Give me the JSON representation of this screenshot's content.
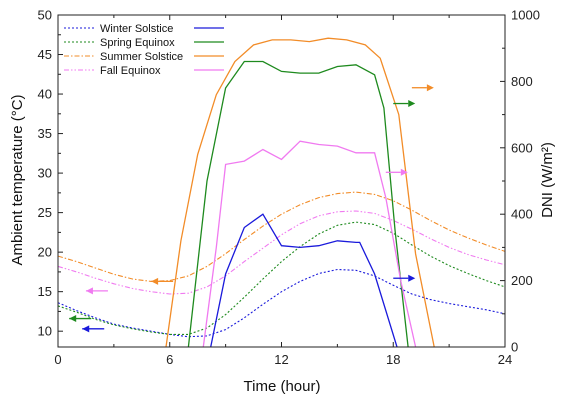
{
  "chart_data": {
    "type": "line",
    "xlabel": "Time (hour)",
    "ylabel_left": "Ambient temperature (°C)",
    "ylabel_right": "DNI (W/m²)",
    "xlim": [
      0,
      24
    ],
    "ylim_left": [
      8,
      50
    ],
    "ylim_right": [
      0,
      1000
    ],
    "x_ticks": [
      0,
      6,
      12,
      18,
      24
    ],
    "y_ticks_left": [
      10,
      15,
      20,
      25,
      30,
      35,
      40,
      45,
      50
    ],
    "y_ticks_right": [
      0,
      200,
      400,
      600,
      800,
      1000
    ],
    "grid": false,
    "legend_position": "top-left",
    "legend": [
      {
        "label": "Winter Solstice",
        "color": "#1a1adb"
      },
      {
        "label": "Spring Equinox",
        "color": "#1e8a1e"
      },
      {
        "label": "Summer Solstice",
        "color": "#f28c28"
      },
      {
        "label": "Fall Equinox",
        "color": "#f07af0"
      }
    ],
    "series": [
      {
        "season": "Winter Solstice",
        "quantity": "temperature",
        "axis": "left",
        "color": "#1a1adb",
        "style": "dotted",
        "x": [
          0,
          1,
          2,
          3,
          4,
          5,
          6,
          7,
          8,
          9,
          10,
          11,
          12,
          13,
          14,
          15,
          16,
          17,
          18,
          19,
          20,
          21,
          22,
          23,
          24
        ],
        "y": [
          13.6,
          12.6,
          11.7,
          10.9,
          10.4,
          10.0,
          9.6,
          9.3,
          9.4,
          10.2,
          11.7,
          13.4,
          15.0,
          16.3,
          17.3,
          17.8,
          17.7,
          17.0,
          15.8,
          14.7,
          14.0,
          13.5,
          13.1,
          12.7,
          12.2
        ]
      },
      {
        "season": "Spring Equinox",
        "quantity": "temperature",
        "axis": "left",
        "color": "#1e8a1e",
        "style": "dotted",
        "x": [
          0,
          1,
          2,
          3,
          4,
          5,
          6,
          7,
          8,
          9,
          10,
          11,
          12,
          13,
          14,
          15,
          16,
          17,
          18,
          19,
          20,
          21,
          22,
          23,
          24
        ],
        "y": [
          13.2,
          12.4,
          11.5,
          10.8,
          10.3,
          9.9,
          9.6,
          9.6,
          10.4,
          12.1,
          14.3,
          16.6,
          18.8,
          20.7,
          22.3,
          23.4,
          23.8,
          23.5,
          22.4,
          20.9,
          19.5,
          18.3,
          17.3,
          16.4,
          15.6
        ]
      },
      {
        "season": "Summer Solstice",
        "quantity": "temperature",
        "axis": "left",
        "color": "#f28c28",
        "style": "dashdot",
        "x": [
          0,
          1,
          2,
          3,
          4,
          5,
          6,
          7,
          8,
          9,
          10,
          11,
          12,
          13,
          14,
          15,
          16,
          17,
          18,
          19,
          20,
          21,
          22,
          23,
          24
        ],
        "y": [
          19.5,
          18.8,
          18.0,
          17.2,
          16.6,
          16.3,
          16.4,
          17.0,
          18.2,
          19.8,
          21.6,
          23.3,
          24.8,
          26.0,
          26.9,
          27.4,
          27.6,
          27.3,
          26.5,
          25.3,
          24.0,
          22.8,
          21.8,
          20.9,
          20.1
        ]
      },
      {
        "season": "Fall Equinox",
        "quantity": "temperature",
        "axis": "left",
        "color": "#f07af0",
        "style": "dashdotdot",
        "x": [
          0,
          1,
          2,
          3,
          4,
          5,
          6,
          7,
          8,
          9,
          10,
          11,
          12,
          13,
          14,
          15,
          16,
          17,
          18,
          19,
          20,
          21,
          22,
          23,
          24
        ],
        "y": [
          18.2,
          17.5,
          16.7,
          16.0,
          15.4,
          15.0,
          14.7,
          14.8,
          15.6,
          17.0,
          18.8,
          20.5,
          22.2,
          23.6,
          24.6,
          25.1,
          25.2,
          24.9,
          24.0,
          22.9,
          21.7,
          20.6,
          19.7,
          19.0,
          18.4
        ]
      },
      {
        "season": "Winter Solstice",
        "quantity": "DNI",
        "axis": "right",
        "color": "#1a1adb",
        "style": "solid",
        "x": [
          8.2,
          9,
          10,
          11,
          12,
          13,
          14,
          15,
          16,
          16.2,
          17,
          18.2
        ],
        "y": [
          0,
          220,
          360,
          400,
          305,
          300,
          305,
          320,
          315,
          315,
          220,
          0
        ]
      },
      {
        "season": "Spring Equinox",
        "quantity": "DNI",
        "axis": "right",
        "color": "#1e8a1e",
        "style": "solid",
        "x": [
          7.0,
          8,
          9,
          10,
          11,
          12,
          13,
          14,
          15,
          16,
          17,
          17.5,
          18.1,
          18.8
        ],
        "y": [
          0,
          500,
          780,
          860,
          860,
          830,
          825,
          825,
          845,
          850,
          820,
          720,
          350,
          0
        ]
      },
      {
        "season": "Summer Solstice",
        "quantity": "DNI",
        "axis": "right",
        "color": "#f28c28",
        "style": "solid",
        "x": [
          5.8,
          6.6,
          7.5,
          8.5,
          9.5,
          10.5,
          11.5,
          12.5,
          13.5,
          14.5,
          15.5,
          16.5,
          17.3,
          18.3,
          19.2,
          20.2
        ],
        "y": [
          0,
          320,
          580,
          760,
          860,
          910,
          925,
          925,
          920,
          930,
          925,
          910,
          870,
          700,
          280,
          0
        ]
      },
      {
        "season": "Fall Equinox",
        "quantity": "DNI",
        "axis": "right",
        "color": "#f07af0",
        "style": "solid",
        "x": [
          7.8,
          8.5,
          9,
          10,
          11,
          12,
          13,
          14,
          15,
          16,
          17,
          17.6,
          18.4,
          19.2
        ],
        "y": [
          0,
          300,
          550,
          560,
          595,
          565,
          620,
          610,
          605,
          585,
          585,
          450,
          200,
          0
        ]
      }
    ],
    "annotations": [
      {
        "type": "arrow",
        "color": "#1a1adb",
        "x": 18,
        "y": 16.7,
        "direction": "right",
        "points_to": "right"
      },
      {
        "type": "arrow",
        "color": "#1e8a1e",
        "x": 18,
        "y": 38.8,
        "direction": "right",
        "points_to": "right"
      },
      {
        "type": "arrow",
        "color": "#f28c28",
        "x": 19,
        "y": 40.8,
        "direction": "right",
        "points_to": "right"
      },
      {
        "type": "arrow",
        "color": "#f07af0",
        "x": 17.6,
        "y": 30.1,
        "direction": "right",
        "points_to": "right"
      },
      {
        "type": "arrow",
        "color": "#1a1adb",
        "x": 1.3,
        "y": 10.3,
        "direction": "left",
        "points_to": "left"
      },
      {
        "type": "arrow",
        "color": "#1e8a1e",
        "x": 0.6,
        "y": 11.6,
        "direction": "left",
        "points_to": "left"
      },
      {
        "type": "arrow",
        "color": "#f28c28",
        "x": 5.0,
        "y": 16.3,
        "direction": "left",
        "points_to": "left"
      },
      {
        "type": "arrow",
        "color": "#f07af0",
        "x": 1.5,
        "y": 15.1,
        "direction": "left",
        "points_to": "left"
      }
    ]
  }
}
